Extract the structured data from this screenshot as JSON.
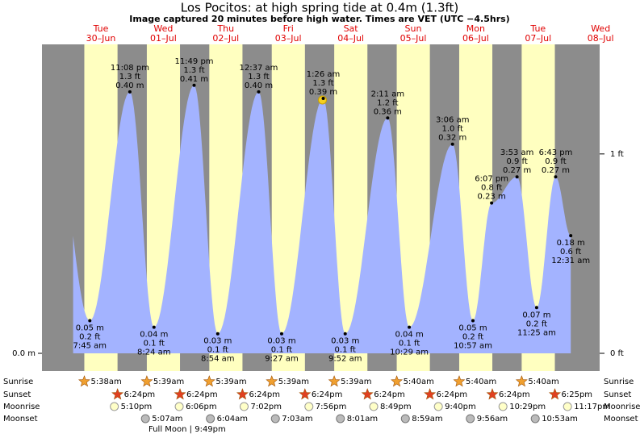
{
  "chart_data": {
    "type": "tide",
    "title": "Los Pocitos: at high  spring tide at 0.4m (1.3ft)",
    "subtitle": "Image captured 20 minutes before high water. Times are VET (UTC −4.5hrs)",
    "days": [
      {
        "weekday": "Tue",
        "date": "30–Jun"
      },
      {
        "weekday": "Wed",
        "date": "01–Jul"
      },
      {
        "weekday": "Thu",
        "date": "02–Jul"
      },
      {
        "weekday": "Fri",
        "date": "03–Jul"
      },
      {
        "weekday": "Sat",
        "date": "04–Jul"
      },
      {
        "weekday": "Sun",
        "date": "05–Jul"
      },
      {
        "weekday": "Mon",
        "date": "06–Jul"
      },
      {
        "weekday": "Tue",
        "date": "07–Jul"
      },
      {
        "weekday": "Wed",
        "date": "08–Jul"
      }
    ],
    "extremes": [
      {
        "date": "30–Jun",
        "time": "7:45 am",
        "value": 0.05,
        "value_label": "0.05 m",
        "ft_label": "0.2 ft"
      },
      {
        "date": "30–Jun",
        "time": "11:08 pm",
        "value": 0.4,
        "value_label": "0.40 m",
        "ft_label": "1.3 ft"
      },
      {
        "date": "01–Jul",
        "time": "8:24 am",
        "value": 0.04,
        "value_label": "0.04 m",
        "ft_label": "0.1 ft"
      },
      {
        "date": "01–Jul",
        "time": "11:49 pm",
        "value": 0.41,
        "value_label": "0.41 m",
        "ft_label": "1.3 ft"
      },
      {
        "date": "02–Jul",
        "time": "8:54 am",
        "value": 0.03,
        "value_label": "0.03 m",
        "ft_label": "0.1 ft"
      },
      {
        "date": "03–Jul",
        "time": "12:37 am",
        "value": 0.4,
        "value_label": "0.40 m",
        "ft_label": "1.3 ft"
      },
      {
        "date": "03–Jul",
        "time": "9:27 am",
        "value": 0.03,
        "value_label": "0.03 m",
        "ft_label": "0.1 ft"
      },
      {
        "date": "04–Jul",
        "time": "1:26 am",
        "value": 0.39,
        "value_label": "0.39 m",
        "ft_label": "1.3 ft"
      },
      {
        "date": "04–Jul",
        "time": "9:52 am",
        "value": 0.03,
        "value_label": "0.03 m",
        "ft_label": "0.1 ft"
      },
      {
        "date": "05–Jul",
        "time": "2:11 am",
        "value": 0.36,
        "value_label": "0.36 m",
        "ft_label": "1.2 ft"
      },
      {
        "date": "05–Jul",
        "time": "10:29 am",
        "value": 0.04,
        "value_label": "0.04 m",
        "ft_label": "0.1 ft"
      },
      {
        "date": "06–Jul",
        "time": "3:06 am",
        "value": 0.32,
        "value_label": "0.32 m",
        "ft_label": "1.0 ft"
      },
      {
        "date": "06–Jul",
        "time": "10:57 am",
        "value": 0.05,
        "value_label": "0.05 m",
        "ft_label": "0.2 ft"
      },
      {
        "date": "06–Jul",
        "time": "6:07 pm",
        "value": 0.23,
        "value_label": "0.23 m",
        "ft_label": "0.8 ft"
      },
      {
        "date": "07–Jul",
        "time": "3:53 am",
        "value": 0.27,
        "value_label": "0.27 m",
        "ft_label": "0.9 ft"
      },
      {
        "date": "07–Jul",
        "time": "11:25 am",
        "value": 0.07,
        "value_label": "0.07 m",
        "ft_label": "0.2 ft"
      },
      {
        "date": "07–Jul",
        "time": "6:43 pm",
        "value": 0.27,
        "value_label": "0.27 m",
        "ft_label": "0.9 ft"
      },
      {
        "date": "08–Jul",
        "time": "12:31 am",
        "value": 0.18,
        "value_label": "0.18 m",
        "ft_label": "0.6 ft"
      }
    ],
    "ylim": [
      0,
      0.485
    ],
    "yticks": [
      {
        "value": 0,
        "label": "0.0 m"
      }
    ],
    "y2lim": [
      0,
      1.59
    ],
    "y2ticks": [
      {
        "value": 0,
        "label": "0 ft"
      },
      {
        "value": 1,
        "label": "1 ft"
      }
    ],
    "colors": {
      "night": "#8c8c8c",
      "day": "#ffffc0",
      "water": "#a3b3ff",
      "date": "#e00000"
    },
    "row_labels": {
      "sunrise": "Sunrise",
      "sunset": "Sunset",
      "moonrise": "Moonrise",
      "moonset": "Moonset"
    },
    "sunrise": [
      {
        "date": "30–Jun",
        "time": "5:38am"
      },
      {
        "date": "01–Jul",
        "time": "5:39am"
      },
      {
        "date": "02–Jul",
        "time": "5:39am"
      },
      {
        "date": "03–Jul",
        "time": "5:39am"
      },
      {
        "date": "04–Jul",
        "time": "5:39am"
      },
      {
        "date": "05–Jul",
        "time": "5:40am"
      },
      {
        "date": "06–Jul",
        "time": "5:40am"
      },
      {
        "date": "07–Jul",
        "time": "5:40am"
      }
    ],
    "sunset": [
      {
        "date": "30–Jun",
        "time": "6:24pm"
      },
      {
        "date": "01–Jul",
        "time": "6:24pm"
      },
      {
        "date": "02–Jul",
        "time": "6:24pm"
      },
      {
        "date": "03–Jul",
        "time": "6:24pm"
      },
      {
        "date": "04–Jul",
        "time": "6:24pm"
      },
      {
        "date": "05–Jul",
        "time": "6:24pm"
      },
      {
        "date": "06–Jul",
        "time": "6:24pm"
      },
      {
        "date": "07–Jul",
        "time": "6:25pm"
      }
    ],
    "moonrise": [
      {
        "date": "30–Jun",
        "time": "5:10pm"
      },
      {
        "date": "01–Jul",
        "time": "6:06pm"
      },
      {
        "date": "02–Jul",
        "time": "7:02pm"
      },
      {
        "date": "03–Jul",
        "time": "7:56pm"
      },
      {
        "date": "04–Jul",
        "time": "8:49pm"
      },
      {
        "date": "05–Jul",
        "time": "9:40pm"
      },
      {
        "date": "06–Jul",
        "time": "10:29pm"
      },
      {
        "date": "07–Jul",
        "time": "11:17pm"
      }
    ],
    "moonset": [
      {
        "date": "01–Jul",
        "time": "5:07am"
      },
      {
        "date": "02–Jul",
        "time": "6:04am"
      },
      {
        "date": "03–Jul",
        "time": "7:03am"
      },
      {
        "date": "04–Jul",
        "time": "8:01am"
      },
      {
        "date": "05–Jul",
        "time": "8:59am"
      },
      {
        "date": "06–Jul",
        "time": "9:56am"
      },
      {
        "date": "07–Jul",
        "time": "10:53am"
      }
    ],
    "full_moon": "Full Moon | 9:49pm"
  }
}
